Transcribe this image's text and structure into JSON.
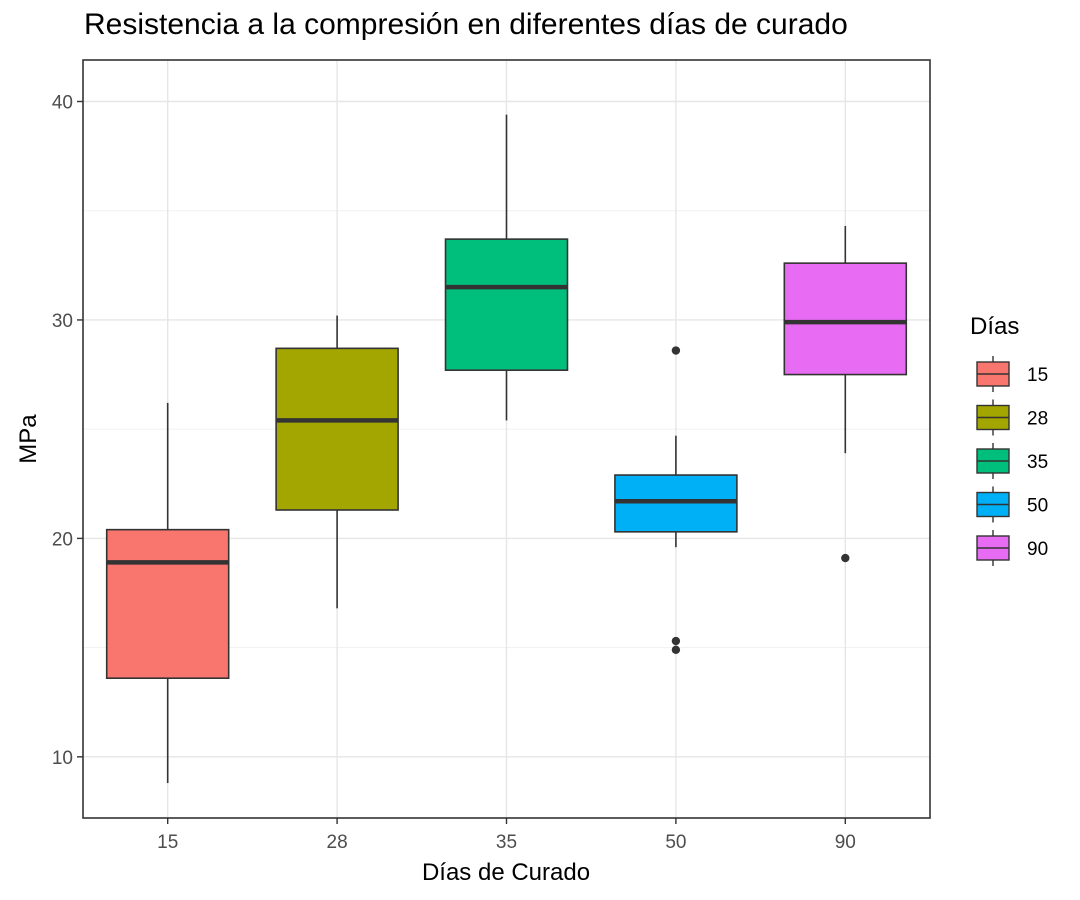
{
  "chart_data": {
    "type": "box",
    "title": "Resistencia a la compresión en diferentes días de curado",
    "xlabel": "Días de Curado",
    "ylabel": "MPa",
    "ylim": [
      7.2,
      41.9
    ],
    "yticks": [
      10,
      20,
      30,
      40
    ],
    "grid": true,
    "legend": {
      "title": "Días",
      "placement": "right",
      "items": [
        "15",
        "28",
        "35",
        "50",
        "90"
      ]
    },
    "categories": [
      "15",
      "28",
      "35",
      "50",
      "90"
    ],
    "boxes": [
      {
        "category": "15",
        "color": "#F8766D",
        "whisker_low": 8.8,
        "q1": 13.6,
        "median": 18.9,
        "q3": 20.4,
        "whisker_high": 26.2,
        "outliers": []
      },
      {
        "category": "28",
        "color": "#A3A500",
        "whisker_low": 16.8,
        "q1": 21.3,
        "median": 25.4,
        "q3": 28.7,
        "whisker_high": 30.2,
        "outliers": []
      },
      {
        "category": "35",
        "color": "#00BF7D",
        "whisker_low": 25.4,
        "q1": 27.7,
        "median": 31.5,
        "q3": 33.7,
        "whisker_high": 39.4,
        "outliers": []
      },
      {
        "category": "50",
        "color": "#00B0F6",
        "whisker_low": 19.6,
        "q1": 20.3,
        "median": 21.7,
        "q3": 22.9,
        "whisker_high": 24.7,
        "outliers": [
          28.6,
          15.3,
          14.9
        ]
      },
      {
        "category": "90",
        "color": "#E76BF3",
        "whisker_low": 23.9,
        "q1": 27.5,
        "median": 29.9,
        "q3": 32.6,
        "whisker_high": 34.3,
        "outliers": [
          19.1
        ]
      }
    ]
  }
}
